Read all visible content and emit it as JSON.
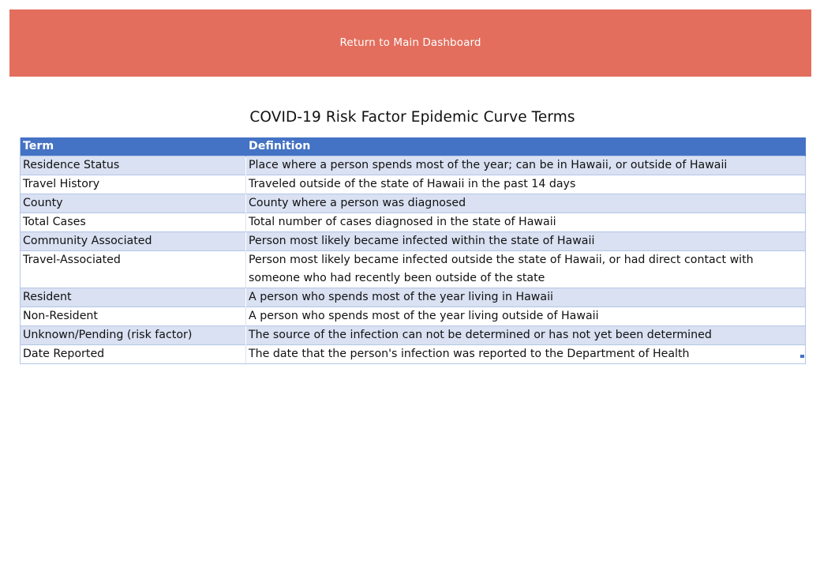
{
  "banner": {
    "label": "Return to Main Dashboard",
    "color": "#e36e5d"
  },
  "title": "COVID-19 Risk Factor Epidemic Curve Terms",
  "table": {
    "header_color": "#4472c4",
    "stripe_color": "#d9e1f2",
    "columns": [
      "Term",
      "Definition"
    ],
    "rows": [
      {
        "term": "Residence Status",
        "definition": "Place where a person spends most of the year; can be in Hawaii, or outside of Hawaii"
      },
      {
        "term": "Travel History",
        "definition": "Traveled outside of the state of Hawaii in the past 14 days"
      },
      {
        "term": "County",
        "definition": "County where a person was diagnosed"
      },
      {
        "term": "Total Cases",
        "definition": "Total number of cases diagnosed in the state of Hawaii"
      },
      {
        "term": "Community Associated",
        "definition": "Person most likely became infected within the state of Hawaii"
      },
      {
        "term": "Travel-Associated",
        "definition": "Person most likely became infected outside the state of Hawaii, or had direct contact with someone who had recently been outside of the state"
      },
      {
        "term": "Resident",
        "definition": "A person who spends most of the year living in Hawaii"
      },
      {
        "term": "Non-Resident",
        "definition": "A person who spends most of the year living outside of Hawaii"
      },
      {
        "term": "Unknown/Pending (risk factor)",
        "definition": "The source of the infection can not be determined or has not yet been determined"
      },
      {
        "term": "Date Reported",
        "definition": "The date that the person's infection was reported to the Department of Health"
      }
    ]
  }
}
